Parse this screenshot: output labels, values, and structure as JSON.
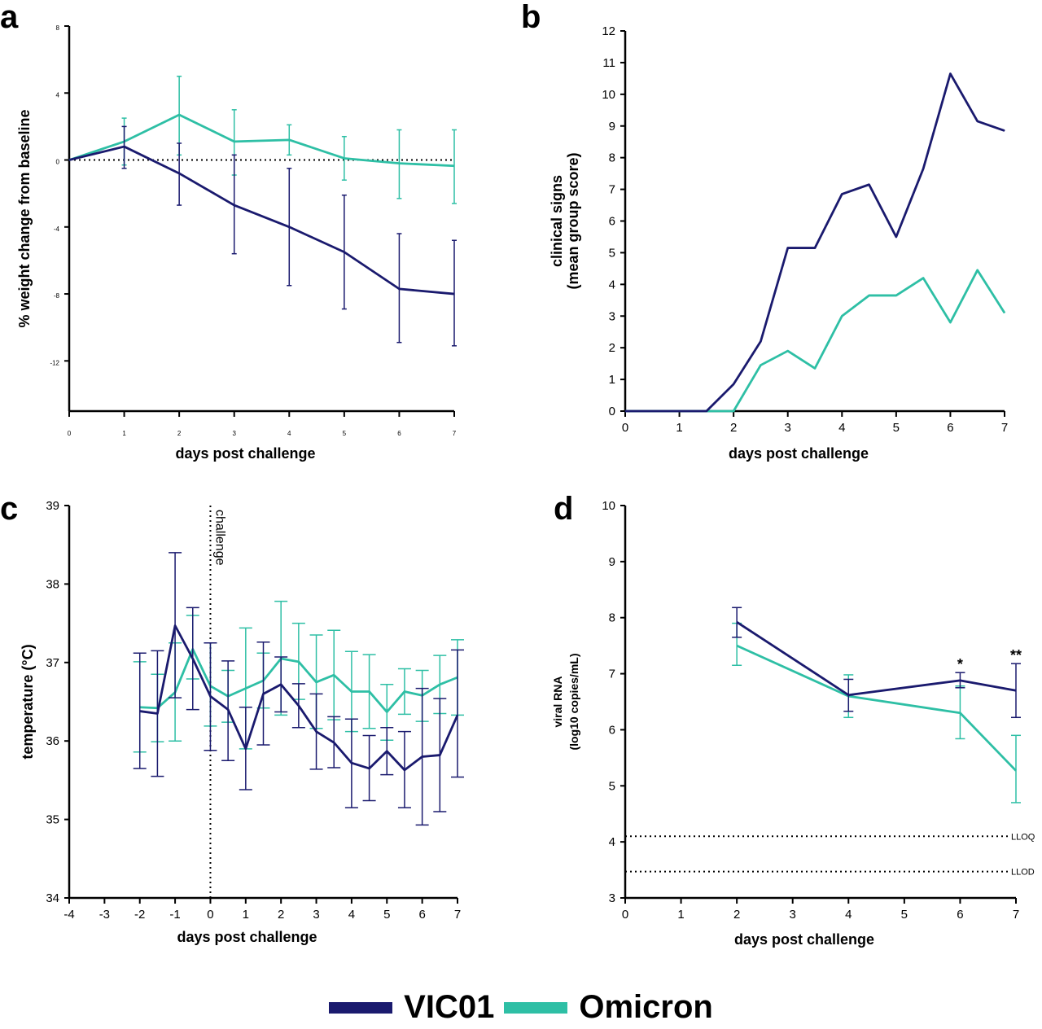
{
  "colors": {
    "VIC01": "#1a1a6e",
    "Omicron": "#2ebfa5"
  },
  "legend": [
    {
      "name": "VIC01",
      "color": "#1a1a6e"
    },
    {
      "name": "Omicron",
      "color": "#2ebfa5"
    }
  ],
  "chart_data": [
    {
      "panel": "a",
      "type": "line",
      "xlabel": "days post challenge",
      "ylabel": [
        "% weight change from baseline"
      ],
      "xlim": [
        0,
        7
      ],
      "ylim": [
        -15,
        8
      ],
      "xticks": [
        0,
        1,
        2,
        3,
        4,
        5,
        6,
        7
      ],
      "yticks": [
        8,
        4,
        0,
        -4,
        -8,
        -12
      ],
      "reference_lines": [
        {
          "y": 0,
          "style": "dotted"
        }
      ],
      "series": [
        {
          "name": "VIC01",
          "x": [
            0,
            1,
            2,
            3,
            4,
            5,
            6,
            7
          ],
          "y": [
            0,
            0.8,
            -0.8,
            -2.7,
            -4.0,
            -5.5,
            -7.7,
            -8.0
          ],
          "err": [
            [
              0,
              0
            ],
            [
              -0.5,
              2.0
            ],
            [
              -2.7,
              1.0
            ],
            [
              -5.6,
              0.3
            ],
            [
              -7.5,
              -0.5
            ],
            [
              -8.9,
              -2.1
            ],
            [
              -10.9,
              -4.4
            ],
            [
              -11.1,
              -4.8
            ]
          ]
        },
        {
          "name": "Omicron",
          "x": [
            0,
            1,
            2,
            3,
            4,
            5,
            6,
            7
          ],
          "y": [
            0,
            1.1,
            2.7,
            1.1,
            1.2,
            0.1,
            -0.2,
            -0.35
          ],
          "err": [
            [
              0,
              0
            ],
            [
              -0.3,
              2.5
            ],
            [
              0.3,
              5.0
            ],
            [
              -0.9,
              3.0
            ],
            [
              0.3,
              2.1
            ],
            [
              -1.2,
              1.4
            ],
            [
              -2.3,
              1.8
            ],
            [
              -2.6,
              1.8
            ]
          ]
        }
      ]
    },
    {
      "panel": "b",
      "type": "line",
      "xlabel": "days post challenge",
      "ylabel": [
        "clinical signs",
        "(mean group score)"
      ],
      "xlim": [
        0,
        7
      ],
      "ylim": [
        0,
        12
      ],
      "xticks": [
        0,
        1,
        2,
        3,
        4,
        5,
        6,
        7
      ],
      "yticks": [
        0,
        1,
        2,
        3,
        4,
        5,
        6,
        7,
        8,
        9,
        10,
        11,
        12
      ],
      "series": [
        {
          "name": "VIC01",
          "x": [
            0,
            0.5,
            1,
            1.5,
            2,
            2.5,
            3,
            3.5,
            4,
            4.5,
            5,
            5.5,
            6,
            6.5,
            7
          ],
          "y": [
            0,
            0,
            0,
            0,
            0.85,
            2.2,
            5.15,
            5.15,
            6.85,
            7.15,
            5.5,
            7.65,
            10.65,
            9.15,
            8.85
          ]
        },
        {
          "name": "Omicron",
          "x": [
            0,
            0.5,
            1,
            1.5,
            2,
            2.5,
            3,
            3.5,
            4,
            4.5,
            5,
            5.5,
            6,
            6.5,
            7
          ],
          "y": [
            0,
            0,
            0,
            0,
            0,
            1.45,
            1.9,
            1.35,
            3.0,
            3.65,
            3.65,
            4.2,
            2.8,
            4.45,
            3.1
          ]
        }
      ]
    },
    {
      "panel": "c",
      "type": "line",
      "xlabel": "days post challenge",
      "ylabel": [
        "temperature (°C)"
      ],
      "xlim": [
        -4,
        7
      ],
      "ylim": [
        34,
        39
      ],
      "xticks": [
        -4,
        -3,
        -2,
        -1,
        0,
        1,
        2,
        3,
        4,
        5,
        6,
        7
      ],
      "yticks": [
        34,
        35,
        36,
        37,
        38,
        39
      ],
      "reference_lines": [
        {
          "x": 0,
          "style": "dotted",
          "label": "challenge"
        }
      ],
      "series": [
        {
          "name": "VIC01",
          "x": [
            -2,
            -1.5,
            -1,
            -0.5,
            0,
            0.5,
            1,
            1.5,
            2,
            2.5,
            3,
            3.5,
            4,
            4.5,
            5,
            5.5,
            6,
            6.5,
            7
          ],
          "y": [
            36.38,
            36.35,
            37.47,
            37.05,
            36.57,
            36.4,
            35.9,
            36.6,
            36.72,
            36.45,
            36.12,
            35.98,
            35.72,
            35.65,
            35.87,
            35.63,
            35.8,
            35.82,
            36.33
          ],
          "err": [
            [
              35.65,
              37.12
            ],
            [
              35.55,
              37.15
            ],
            [
              36.55,
              38.4
            ],
            [
              36.4,
              37.7
            ],
            [
              35.88,
              37.25
            ],
            [
              35.75,
              37.02
            ],
            [
              35.38,
              36.43
            ],
            [
              35.95,
              37.26
            ],
            [
              36.37,
              37.07
            ],
            [
              36.17,
              36.73
            ],
            [
              35.64,
              36.6
            ],
            [
              35.66,
              36.31
            ],
            [
              35.15,
              36.28
            ],
            [
              35.24,
              36.07
            ],
            [
              35.57,
              36.17
            ],
            [
              35.15,
              36.12
            ],
            [
              34.93,
              36.67
            ],
            [
              35.1,
              36.54
            ],
            [
              35.54,
              37.16
            ]
          ]
        },
        {
          "name": "Omicron",
          "x": [
            -2,
            -1.5,
            -1,
            -0.5,
            0,
            0.5,
            1,
            1.5,
            2,
            2.5,
            3,
            3.5,
            4,
            4.5,
            5,
            5.5,
            6,
            6.5,
            7
          ],
          "y": [
            36.43,
            36.42,
            36.62,
            37.17,
            36.7,
            36.57,
            36.67,
            36.77,
            37.05,
            37.01,
            36.75,
            36.84,
            36.63,
            36.63,
            36.37,
            36.63,
            36.58,
            36.72,
            36.81
          ],
          "err": [
            [
              35.86,
              37.01
            ],
            [
              35.99,
              36.85
            ],
            [
              36.0,
              37.25
            ],
            [
              36.79,
              37.6
            ],
            [
              36.19,
              37.25
            ],
            [
              36.24,
              36.9
            ],
            [
              35.9,
              37.44
            ],
            [
              36.42,
              37.12
            ],
            [
              36.33,
              37.78
            ],
            [
              36.53,
              37.5
            ],
            [
              36.16,
              37.35
            ],
            [
              36.27,
              37.41
            ],
            [
              36.12,
              37.14
            ],
            [
              36.16,
              37.1
            ],
            [
              36.01,
              36.72
            ],
            [
              36.34,
              36.92
            ],
            [
              36.25,
              36.9
            ],
            [
              36.35,
              37.09
            ],
            [
              36.33,
              37.29
            ]
          ]
        }
      ]
    },
    {
      "panel": "d",
      "type": "line",
      "xlabel": "days post challenge",
      "ylabel": [
        "viral RNA",
        "(log10 copies/mL)"
      ],
      "xlim": [
        0,
        7
      ],
      "ylim": [
        3,
        10
      ],
      "xticks": [
        0,
        1,
        2,
        3,
        4,
        5,
        6,
        7
      ],
      "yticks": [
        3,
        4,
        5,
        6,
        7,
        8,
        9,
        10
      ],
      "reference_lines": [
        {
          "y": 4.1,
          "style": "dotted",
          "label": "LLOQ"
        },
        {
          "y": 3.47,
          "style": "dotted",
          "label": "LLOD"
        }
      ],
      "annotations": [
        {
          "x": 6,
          "y": 7.02,
          "text": "*"
        },
        {
          "x": 7,
          "y": 7.18,
          "text": "**"
        }
      ],
      "series": [
        {
          "name": "VIC01",
          "x": [
            2,
            4,
            6,
            7
          ],
          "y": [
            7.92,
            6.62,
            6.88,
            6.7
          ],
          "err": [
            [
              7.65,
              8.18
            ],
            [
              6.33,
              6.9
            ],
            [
              6.75,
              7.02
            ],
            [
              6.22,
              7.18
            ]
          ]
        },
        {
          "name": "Omicron",
          "x": [
            2,
            4,
            6,
            7
          ],
          "y": [
            7.5,
            6.6,
            6.3,
            5.27
          ],
          "err": [
            [
              7.15,
              7.9
            ],
            [
              6.22,
              6.98
            ],
            [
              5.84,
              6.78
            ],
            [
              4.7,
              5.9
            ]
          ]
        }
      ]
    }
  ]
}
